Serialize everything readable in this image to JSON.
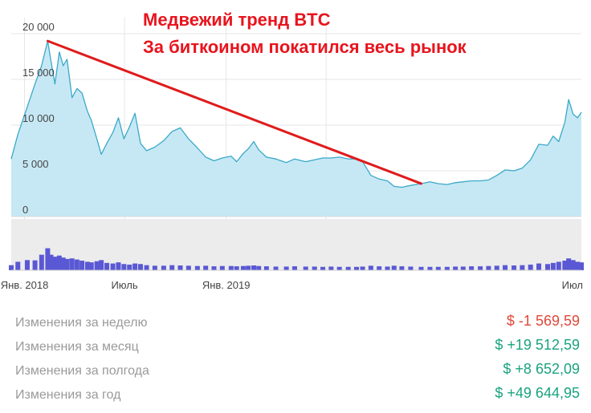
{
  "chart_data": {
    "type": "area",
    "annotation": {
      "line1": "Медвежий тренд BTC",
      "line2": "За биткоином покатился весь рынок"
    },
    "y_axis": {
      "ticks": [
        0,
        5000,
        10000,
        15000,
        20000
      ],
      "tick_labels": [
        "0",
        "5 000",
        "10 000",
        "15 000",
        "20 000"
      ],
      "ylim": [
        0,
        20000
      ]
    },
    "x_axis": {
      "tick_labels": [
        "Янв. 2018",
        "Июль",
        "Янв. 2019",
        "Июл"
      ],
      "tick_dates": [
        "2018-01",
        "2018-07",
        "2019-01",
        "2019-07"
      ]
    },
    "series": [
      {
        "values": [
          [
            "2017-12-08",
            6300
          ],
          [
            "2017-12-20",
            9000
          ],
          [
            "2018-01-06",
            12000
          ],
          [
            "2018-01-20",
            14500
          ],
          [
            "2018-02-01",
            16500
          ],
          [
            "2018-02-12",
            19200
          ],
          [
            "2018-02-18",
            17000
          ],
          [
            "2018-02-25",
            14500
          ],
          [
            "2018-03-05",
            18000
          ],
          [
            "2018-03-12",
            16500
          ],
          [
            "2018-03-19",
            17200
          ],
          [
            "2018-03-28",
            13000
          ],
          [
            "2018-04-06",
            14000
          ],
          [
            "2018-04-15",
            13500
          ],
          [
            "2018-04-25",
            11500
          ],
          [
            "2018-05-02",
            10500
          ],
          [
            "2018-05-12",
            8500
          ],
          [
            "2018-05-20",
            6800
          ],
          [
            "2018-05-30",
            8000
          ],
          [
            "2018-06-10",
            9200
          ],
          [
            "2018-06-20",
            10800
          ],
          [
            "2018-06-30",
            8500
          ],
          [
            "2018-07-10",
            9800
          ],
          [
            "2018-07-20",
            11300
          ],
          [
            "2018-07-30",
            8000
          ],
          [
            "2018-08-10",
            7200
          ],
          [
            "2018-08-25",
            7600
          ],
          [
            "2018-09-10",
            8300
          ],
          [
            "2018-09-25",
            9300
          ],
          [
            "2018-10-10",
            9700
          ],
          [
            "2018-10-25",
            8500
          ],
          [
            "2018-11-10",
            7500
          ],
          [
            "2018-11-25",
            6500
          ],
          [
            "2018-12-10",
            6100
          ],
          [
            "2018-12-25",
            6400
          ],
          [
            "2019-01-10",
            6600
          ],
          [
            "2019-01-20",
            6000
          ],
          [
            "2019-02-01",
            6900
          ],
          [
            "2019-02-10",
            7400
          ],
          [
            "2019-02-20",
            8200
          ],
          [
            "2019-03-01",
            7300
          ],
          [
            "2019-03-15",
            6500
          ],
          [
            "2019-04-01",
            6300
          ],
          [
            "2019-04-20",
            5900
          ],
          [
            "2019-05-05",
            6300
          ],
          [
            "2019-05-25",
            6000
          ],
          [
            "2019-06-10",
            6200
          ],
          [
            "2019-06-25",
            6400
          ],
          [
            "2019-07-10",
            6400
          ],
          [
            "2019-07-25",
            6500
          ],
          [
            "2019-08-10",
            6300
          ],
          [
            "2019-08-25",
            6300
          ],
          [
            "2019-09-05",
            6000
          ],
          [
            "2019-09-20",
            4500
          ],
          [
            "2019-10-05",
            4100
          ],
          [
            "2019-10-20",
            3900
          ],
          [
            "2019-11-01",
            3300
          ],
          [
            "2019-11-15",
            3200
          ],
          [
            "2019-12-01",
            3400
          ],
          [
            "2019-12-20",
            3600
          ],
          [
            "2020-01-05",
            3800
          ],
          [
            "2020-01-20",
            3600
          ],
          [
            "2020-02-05",
            3500
          ],
          [
            "2020-02-20",
            3700
          ],
          [
            "2020-03-05",
            3800
          ],
          [
            "2020-03-20",
            3900
          ],
          [
            "2020-04-05",
            3900
          ],
          [
            "2020-04-20",
            4000
          ],
          [
            "2020-05-05",
            4500
          ],
          [
            "2020-05-20",
            5100
          ],
          [
            "2020-06-05",
            5000
          ],
          [
            "2020-06-20",
            5300
          ],
          [
            "2020-07-05",
            6200
          ],
          [
            "2020-07-20",
            7900
          ],
          [
            "2020-08-05",
            7800
          ],
          [
            "2020-08-15",
            8800
          ],
          [
            "2020-08-25",
            8200
          ],
          [
            "2020-09-05",
            10300
          ],
          [
            "2020-09-12",
            12800
          ],
          [
            "2020-09-20",
            11200
          ],
          [
            "2020-09-28",
            10800
          ],
          [
            "2020-10-05",
            11400
          ]
        ]
      }
    ],
    "volume": [
      [
        "2017-12-08",
        0.18
      ],
      [
        "2017-12-20",
        0.3
      ],
      [
        "2018-01-06",
        0.36
      ],
      [
        "2018-01-20",
        0.35
      ],
      [
        "2018-02-01",
        0.55
      ],
      [
        "2018-02-12",
        0.78
      ],
      [
        "2018-02-18",
        0.55
      ],
      [
        "2018-02-25",
        0.48
      ],
      [
        "2018-03-05",
        0.52
      ],
      [
        "2018-03-12",
        0.45
      ],
      [
        "2018-03-19",
        0.4
      ],
      [
        "2018-03-28",
        0.42
      ],
      [
        "2018-04-06",
        0.38
      ],
      [
        "2018-04-15",
        0.34
      ],
      [
        "2018-04-25",
        0.3
      ],
      [
        "2018-05-02",
        0.28
      ],
      [
        "2018-05-12",
        0.32
      ],
      [
        "2018-05-20",
        0.36
      ],
      [
        "2018-05-30",
        0.26
      ],
      [
        "2018-06-10",
        0.24
      ],
      [
        "2018-06-20",
        0.28
      ],
      [
        "2018-06-30",
        0.22
      ],
      [
        "2018-07-10",
        0.2
      ],
      [
        "2018-07-20",
        0.24
      ],
      [
        "2018-07-30",
        0.22
      ],
      [
        "2018-08-10",
        0.18
      ],
      [
        "2018-08-25",
        0.16
      ],
      [
        "2018-09-10",
        0.16
      ],
      [
        "2018-09-25",
        0.18
      ],
      [
        "2018-10-10",
        0.17
      ],
      [
        "2018-10-25",
        0.16
      ],
      [
        "2018-11-10",
        0.15
      ],
      [
        "2018-11-25",
        0.16
      ],
      [
        "2018-12-10",
        0.14
      ],
      [
        "2018-12-25",
        0.15
      ],
      [
        "2019-01-10",
        0.15
      ],
      [
        "2019-01-20",
        0.14
      ],
      [
        "2019-02-01",
        0.15
      ],
      [
        "2019-02-10",
        0.16
      ],
      [
        "2019-02-20",
        0.17
      ],
      [
        "2019-03-01",
        0.15
      ],
      [
        "2019-03-15",
        0.14
      ],
      [
        "2019-04-01",
        0.13
      ],
      [
        "2019-04-20",
        0.13
      ],
      [
        "2019-05-05",
        0.14
      ],
      [
        "2019-05-25",
        0.13
      ],
      [
        "2019-06-10",
        0.13
      ],
      [
        "2019-06-25",
        0.12
      ],
      [
        "2019-07-10",
        0.13
      ],
      [
        "2019-07-25",
        0.12
      ],
      [
        "2019-08-10",
        0.12
      ],
      [
        "2019-08-25",
        0.12
      ],
      [
        "2019-09-05",
        0.13
      ],
      [
        "2019-09-20",
        0.16
      ],
      [
        "2019-10-05",
        0.14
      ],
      [
        "2019-10-20",
        0.13
      ],
      [
        "2019-11-01",
        0.16
      ],
      [
        "2019-11-15",
        0.14
      ],
      [
        "2019-12-01",
        0.13
      ],
      [
        "2019-12-20",
        0.12
      ],
      [
        "2020-01-05",
        0.12
      ],
      [
        "2020-01-20",
        0.12
      ],
      [
        "2020-02-05",
        0.12
      ],
      [
        "2020-02-20",
        0.13
      ],
      [
        "2020-03-05",
        0.13
      ],
      [
        "2020-03-20",
        0.14
      ],
      [
        "2020-04-05",
        0.14
      ],
      [
        "2020-04-20",
        0.15
      ],
      [
        "2020-05-05",
        0.16
      ],
      [
        "2020-05-20",
        0.18
      ],
      [
        "2020-06-05",
        0.17
      ],
      [
        "2020-06-20",
        0.18
      ],
      [
        "2020-07-05",
        0.2
      ],
      [
        "2020-07-20",
        0.24
      ],
      [
        "2020-08-05",
        0.22
      ],
      [
        "2020-08-15",
        0.26
      ],
      [
        "2020-08-25",
        0.3
      ],
      [
        "2020-09-05",
        0.34
      ],
      [
        "2020-09-12",
        0.42
      ],
      [
        "2020-09-20",
        0.36
      ],
      [
        "2020-09-28",
        0.3
      ],
      [
        "2020-10-05",
        0.28
      ]
    ],
    "trend_line": {
      "from": [
        "2018-02-12",
        19200
      ],
      "to": [
        "2019-12-20",
        3600
      ]
    },
    "colors": {
      "line": "#3aa9c8",
      "fill": "#c6e8f4",
      "trend": "#e01b1b",
      "volume": "#5a58d4",
      "volume_bg": "#ececec"
    },
    "grid": true
  },
  "stats": [
    {
      "label": "Изменения за неделю",
      "value": "$ -1 569,59",
      "sign": "neg"
    },
    {
      "label": "Изменения за месяц",
      "value": "$ +19 512,59",
      "sign": "pos"
    },
    {
      "label": "Изменения за полгода",
      "value": "$ +8 652,09",
      "sign": "pos"
    },
    {
      "label": "Изменения за год",
      "value": "$ +49 644,95",
      "sign": "pos"
    }
  ]
}
